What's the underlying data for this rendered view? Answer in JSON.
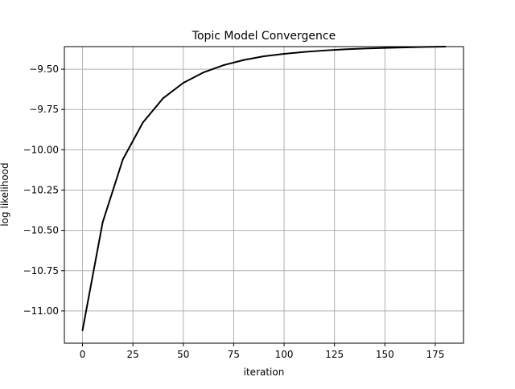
{
  "chart_data": {
    "type": "line",
    "title": "Topic Model Convergence",
    "xlabel": "iteration",
    "ylabel": "log likelihood",
    "xlim": [
      -9,
      189
    ],
    "ylim": [
      -11.2,
      -9.36
    ],
    "xticks": [
      0,
      25,
      50,
      75,
      100,
      125,
      150,
      175
    ],
    "xtick_labels": [
      "0",
      "25",
      "50",
      "75",
      "100",
      "125",
      "150",
      "175"
    ],
    "yticks": [
      -11.0,
      -10.75,
      -10.5,
      -10.25,
      -10.0,
      -9.75,
      -9.5
    ],
    "ytick_labels": [
      "−11.00",
      "−10.75",
      "−10.50",
      "−10.25",
      "−10.00",
      "−9.75",
      "−9.50"
    ],
    "grid": true,
    "legend": "none",
    "series": [
      {
        "color": "#000000",
        "x": [
          0,
          10,
          20,
          30,
          40,
          50,
          60,
          70,
          80,
          90,
          100,
          110,
          120,
          130,
          140,
          150,
          160,
          170,
          180
        ],
        "y": [
          -11.12,
          -10.45,
          -10.06,
          -9.83,
          -9.68,
          -9.585,
          -9.52,
          -9.475,
          -9.443,
          -9.42,
          -9.405,
          -9.393,
          -9.384,
          -9.377,
          -9.372,
          -9.368,
          -9.365,
          -9.362,
          -9.36
        ]
      }
    ]
  }
}
